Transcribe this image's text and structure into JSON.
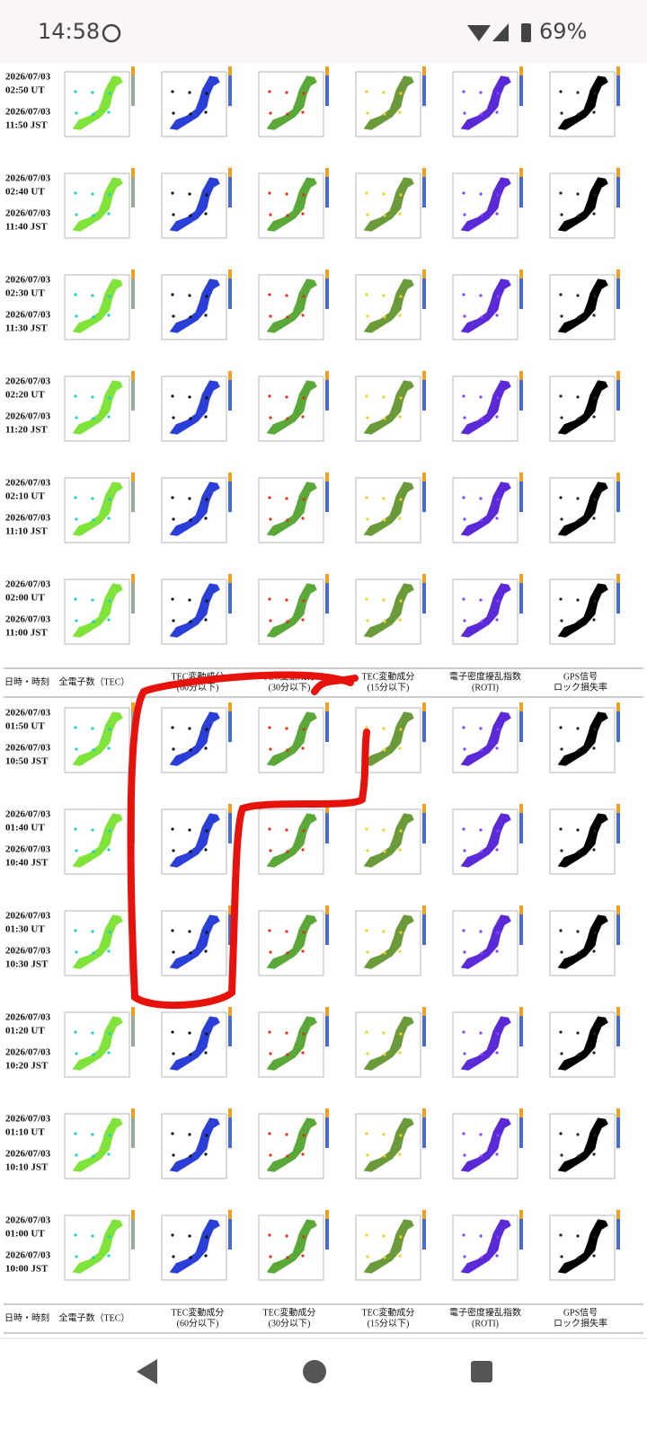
{
  "status_bar": {
    "time": "14:58",
    "battery": "69%"
  },
  "table": {
    "header": [
      [
        "日時・時刻"
      ],
      [
        "全電子数（TEC）"
      ],
      [
        "TEC変動成分",
        "(60分以下)"
      ],
      [
        "TEC変動成分",
        "(30分以下)"
      ],
      [
        "TEC変動成分",
        "(15分以下)"
      ],
      [
        "電子密度擾乱指数",
        "(ROTI)"
      ],
      [
        "GPS信号",
        "ロック損失率"
      ]
    ],
    "sections": [
      {
        "rows": [
          [
            "2026/07/03",
            "02:50 UT",
            "2026/07/03",
            "11:50 JST"
          ],
          [
            "2026/07/03",
            "02:40 UT",
            "2026/07/03",
            "11:40 JST"
          ],
          [
            "2026/07/03",
            "02:30 UT",
            "2026/07/03",
            "11:30 JST"
          ],
          [
            "2026/07/03",
            "02:20 UT",
            "2026/07/03",
            "11:20 JST"
          ],
          [
            "2026/07/03",
            "02:10 UT",
            "2026/07/03",
            "11:10 JST"
          ],
          [
            "2026/07/03",
            "02:00 UT",
            "2026/07/03",
            "11:00 JST"
          ]
        ]
      },
      {
        "rows": [
          [
            "2026/07/03",
            "01:50 UT",
            "2026/07/03",
            "10:50 JST"
          ],
          [
            "2026/07/03",
            "01:40 UT",
            "2026/07/03",
            "10:40 JST"
          ],
          [
            "2026/07/03",
            "01:30 UT",
            "2026/07/03",
            "10:30 JST"
          ],
          [
            "2026/07/03",
            "01:20 UT",
            "2026/07/03",
            "10:20 JST"
          ],
          [
            "2026/07/03",
            "01:10 UT",
            "2026/07/03",
            "10:10 JST"
          ],
          [
            "2026/07/03",
            "01:00 UT",
            "2026/07/03",
            "10:00 JST"
          ]
        ]
      }
    ]
  }
}
